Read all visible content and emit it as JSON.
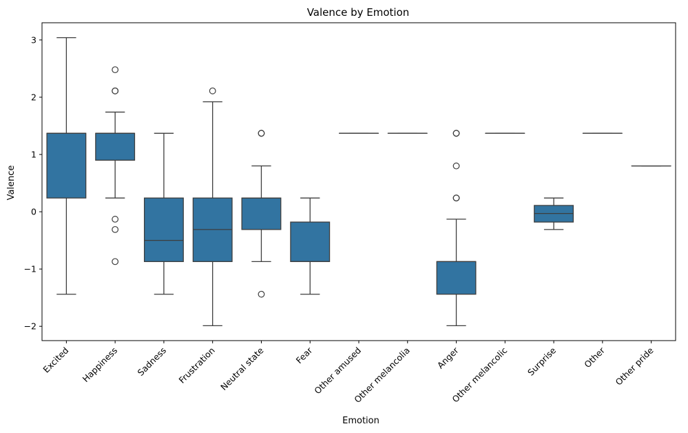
{
  "chart_data": {
    "type": "box",
    "title": "Valence by Emotion",
    "xlabel": "Emotion",
    "ylabel": "Valence",
    "ylim": [
      -2.25,
      3.3
    ],
    "yticks": [
      -2,
      -1,
      0,
      1,
      2,
      3
    ],
    "ytick_labels": [
      "−2",
      "−1",
      "0",
      "1",
      "2",
      "3"
    ],
    "grid": false,
    "legend": "none",
    "box_color": "#3274a1",
    "line_color": "#3d3d3d",
    "categories": [
      "Excited",
      "Happiness",
      "Sadness",
      "Frustration",
      "Neutral state",
      "Fear",
      "Other amused",
      "Other melancolia",
      "Anger",
      "Other melancolic",
      "Surprise",
      "Other",
      "Other pride"
    ],
    "boxes": [
      {
        "label": "Excited",
        "whisker_low": -1.44,
        "q1": 0.24,
        "median": 1.37,
        "q3": 1.37,
        "whisker_high": 3.04,
        "outliers": []
      },
      {
        "label": "Happiness",
        "whisker_low": 0.24,
        "q1": 0.9,
        "median": 1.37,
        "q3": 1.37,
        "whisker_high": 1.74,
        "outliers": [
          2.48,
          2.11,
          2.11,
          -0.13,
          -0.31,
          -0.87
        ]
      },
      {
        "label": "Sadness",
        "whisker_low": -1.44,
        "q1": -0.87,
        "median": -0.5,
        "q3": 0.24,
        "whisker_high": 1.37,
        "outliers": []
      },
      {
        "label": "Frustration",
        "whisker_low": -1.99,
        "q1": -0.87,
        "median": -0.31,
        "q3": 0.24,
        "whisker_high": 1.92,
        "outliers": [
          2.11
        ]
      },
      {
        "label": "Neutral state",
        "whisker_low": -0.87,
        "q1": -0.31,
        "median": 0.24,
        "q3": 0.24,
        "whisker_high": 0.8,
        "outliers": [
          1.37,
          1.37,
          -1.44
        ]
      },
      {
        "label": "Fear",
        "whisker_low": -1.44,
        "q1": -0.87,
        "median": -0.87,
        "q3": -0.18,
        "whisker_high": 0.24,
        "outliers": []
      },
      {
        "label": "Other amused",
        "whisker_low": 1.37,
        "q1": 1.37,
        "median": 1.37,
        "q3": 1.37,
        "whisker_high": 1.37,
        "outliers": []
      },
      {
        "label": "Other melancolia",
        "whisker_low": 1.37,
        "q1": 1.37,
        "median": 1.37,
        "q3": 1.37,
        "whisker_high": 1.37,
        "outliers": []
      },
      {
        "label": "Anger",
        "whisker_low": -1.99,
        "q1": -1.44,
        "median": -0.87,
        "q3": -0.87,
        "whisker_high": -0.13,
        "outliers": [
          1.37,
          1.37,
          0.8,
          0.24,
          0.24
        ]
      },
      {
        "label": "Other melancolic",
        "whisker_low": 1.37,
        "q1": 1.37,
        "median": 1.37,
        "q3": 1.37,
        "whisker_high": 1.37,
        "outliers": []
      },
      {
        "label": "Surprise",
        "whisker_low": -0.31,
        "q1": -0.18,
        "median": -0.03,
        "q3": 0.11,
        "whisker_high": 0.24,
        "outliers": []
      },
      {
        "label": "Other",
        "whisker_low": 1.37,
        "q1": 1.37,
        "median": 1.37,
        "q3": 1.37,
        "whisker_high": 1.37,
        "outliers": []
      },
      {
        "label": "Other pride",
        "whisker_low": 0.8,
        "q1": 0.8,
        "median": 0.8,
        "q3": 0.8,
        "whisker_high": 0.8,
        "outliers": []
      }
    ]
  }
}
